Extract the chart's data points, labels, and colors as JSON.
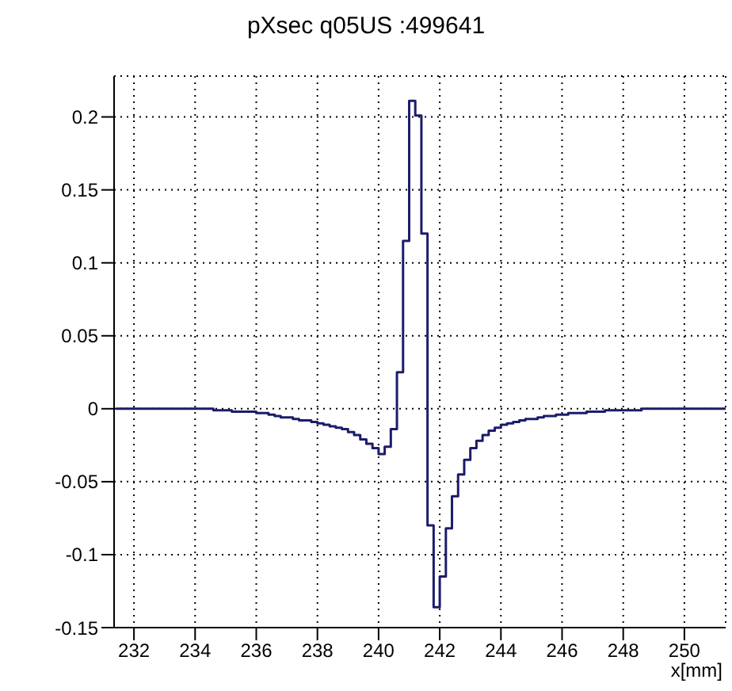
{
  "chart_data": {
    "type": "histogram",
    "title": "pXsec q05US :499641",
    "xlabel": "x[mm]",
    "bins": [
      231.4,
      231.6,
      231.8,
      232.0,
      232.2,
      232.4,
      232.6,
      232.8,
      233.0,
      233.2,
      233.4,
      233.6,
      233.8,
      234.0,
      234.2,
      234.4,
      234.6,
      234.8,
      235.0,
      235.2,
      235.4,
      235.6,
      235.8,
      236.0,
      236.2,
      236.4,
      236.6,
      236.8,
      237.0,
      237.2,
      237.4,
      237.6,
      237.8,
      238.0,
      238.2,
      238.4,
      238.6,
      238.8,
      239.0,
      239.2,
      239.4,
      239.6,
      239.8,
      240.0,
      240.2,
      240.4,
      240.6,
      240.8,
      241.0,
      241.2,
      241.4,
      241.6,
      241.8,
      242.0,
      242.2,
      242.4,
      242.6,
      242.8,
      243.0,
      243.2,
      243.4,
      243.6,
      243.8,
      244.0,
      244.2,
      244.4,
      244.6,
      244.8,
      245.0,
      245.2,
      245.4,
      245.6,
      245.8,
      246.0,
      246.2,
      246.4,
      246.6,
      246.8,
      247.0,
      247.2,
      247.4,
      247.6,
      247.8,
      248.0,
      248.2,
      248.4,
      248.6,
      248.8,
      249.0,
      249.2,
      249.4,
      249.6,
      249.8,
      250.0,
      250.2,
      250.4,
      250.6,
      250.8,
      251.0,
      251.2,
      251.4
    ],
    "values": [
      0,
      0,
      0,
      0,
      0,
      0,
      0,
      0,
      0,
      0,
      0,
      0,
      0,
      0,
      0,
      0,
      -0.001,
      -0.001,
      -0.001,
      -0.002,
      -0.002,
      -0.002,
      -0.002,
      -0.003,
      -0.003,
      -0.004,
      -0.005,
      -0.006,
      -0.006,
      -0.007,
      -0.008,
      -0.008,
      -0.009,
      -0.01,
      -0.011,
      -0.012,
      -0.013,
      -0.014,
      -0.016,
      -0.018,
      -0.021,
      -0.024,
      -0.027,
      -0.031,
      -0.026,
      -0.014,
      0.025,
      0.115,
      0.211,
      0.201,
      0.12,
      -0.08,
      -0.136,
      -0.115,
      -0.082,
      -0.06,
      -0.045,
      -0.035,
      -0.027,
      -0.022,
      -0.018,
      -0.015,
      -0.013,
      -0.011,
      -0.01,
      -0.009,
      -0.008,
      -0.007,
      -0.007,
      -0.006,
      -0.005,
      -0.005,
      -0.004,
      -0.004,
      -0.003,
      -0.003,
      -0.003,
      -0.002,
      -0.002,
      -0.002,
      -0.001,
      -0.001,
      -0.001,
      -0.001,
      -0.001,
      -0.001,
      0,
      0,
      0,
      0,
      0,
      0,
      0,
      0,
      0,
      0,
      0,
      0,
      0,
      0
    ],
    "color": "#1c1c6b",
    "xlim": [
      231.35,
      251.35
    ],
    "ylim": [
      -0.15,
      0.228
    ],
    "xticks": [
      232,
      234,
      236,
      238,
      240,
      242,
      244,
      246,
      248,
      250
    ],
    "yticks": [
      -0.15,
      -0.1,
      -0.05,
      0,
      0.05,
      0.1,
      0.15,
      0.2
    ],
    "grid": true
  }
}
